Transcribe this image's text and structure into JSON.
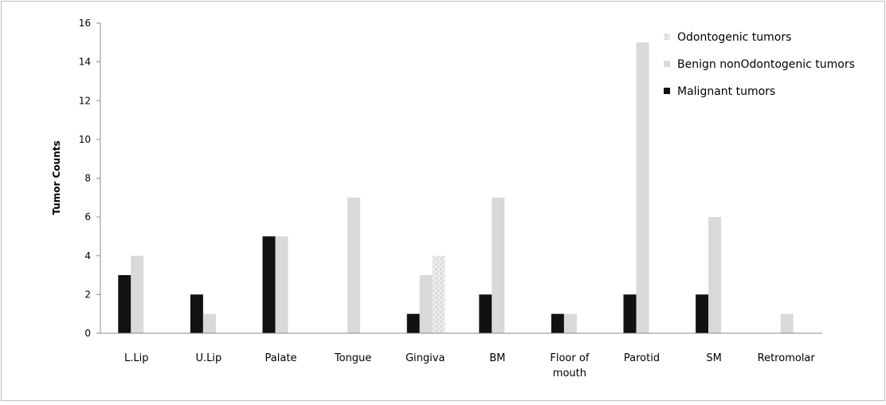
{
  "chart_data": {
    "type": "bar",
    "title": "",
    "xlabel": "",
    "ylabel": "Tumor Counts",
    "ylim": [
      0,
      16
    ],
    "yticks": [
      0,
      2,
      4,
      6,
      8,
      10,
      12,
      14,
      16
    ],
    "grid": false,
    "legend_position": "top-right",
    "categories": [
      "L.Lip",
      "U.Lip",
      "Palate",
      "Tongue",
      "Gingiva",
      "BM",
      "Floor of mouth",
      "Parotid",
      "SM",
      "Retromolar"
    ],
    "series": [
      {
        "name": "Malignant tumors",
        "color": "#111111",
        "values": [
          3,
          2,
          5,
          0,
          1,
          2,
          1,
          2,
          2,
          0
        ]
      },
      {
        "name": "Benign nonOdontogenic tumors",
        "color": "#d9d9d9",
        "values": [
          4,
          1,
          5,
          7,
          3,
          7,
          1,
          15,
          6,
          1
        ]
      },
      {
        "name": "Odontogenic tumors",
        "color": "#e6e6e6",
        "pattern": "speckled",
        "values": [
          0,
          0,
          0,
          0,
          4,
          0,
          0,
          0,
          0,
          0
        ]
      }
    ],
    "legend_order": [
      "Odontogenic tumors",
      "Benign nonOdontogenic tumors",
      "Malignant tumors"
    ]
  }
}
